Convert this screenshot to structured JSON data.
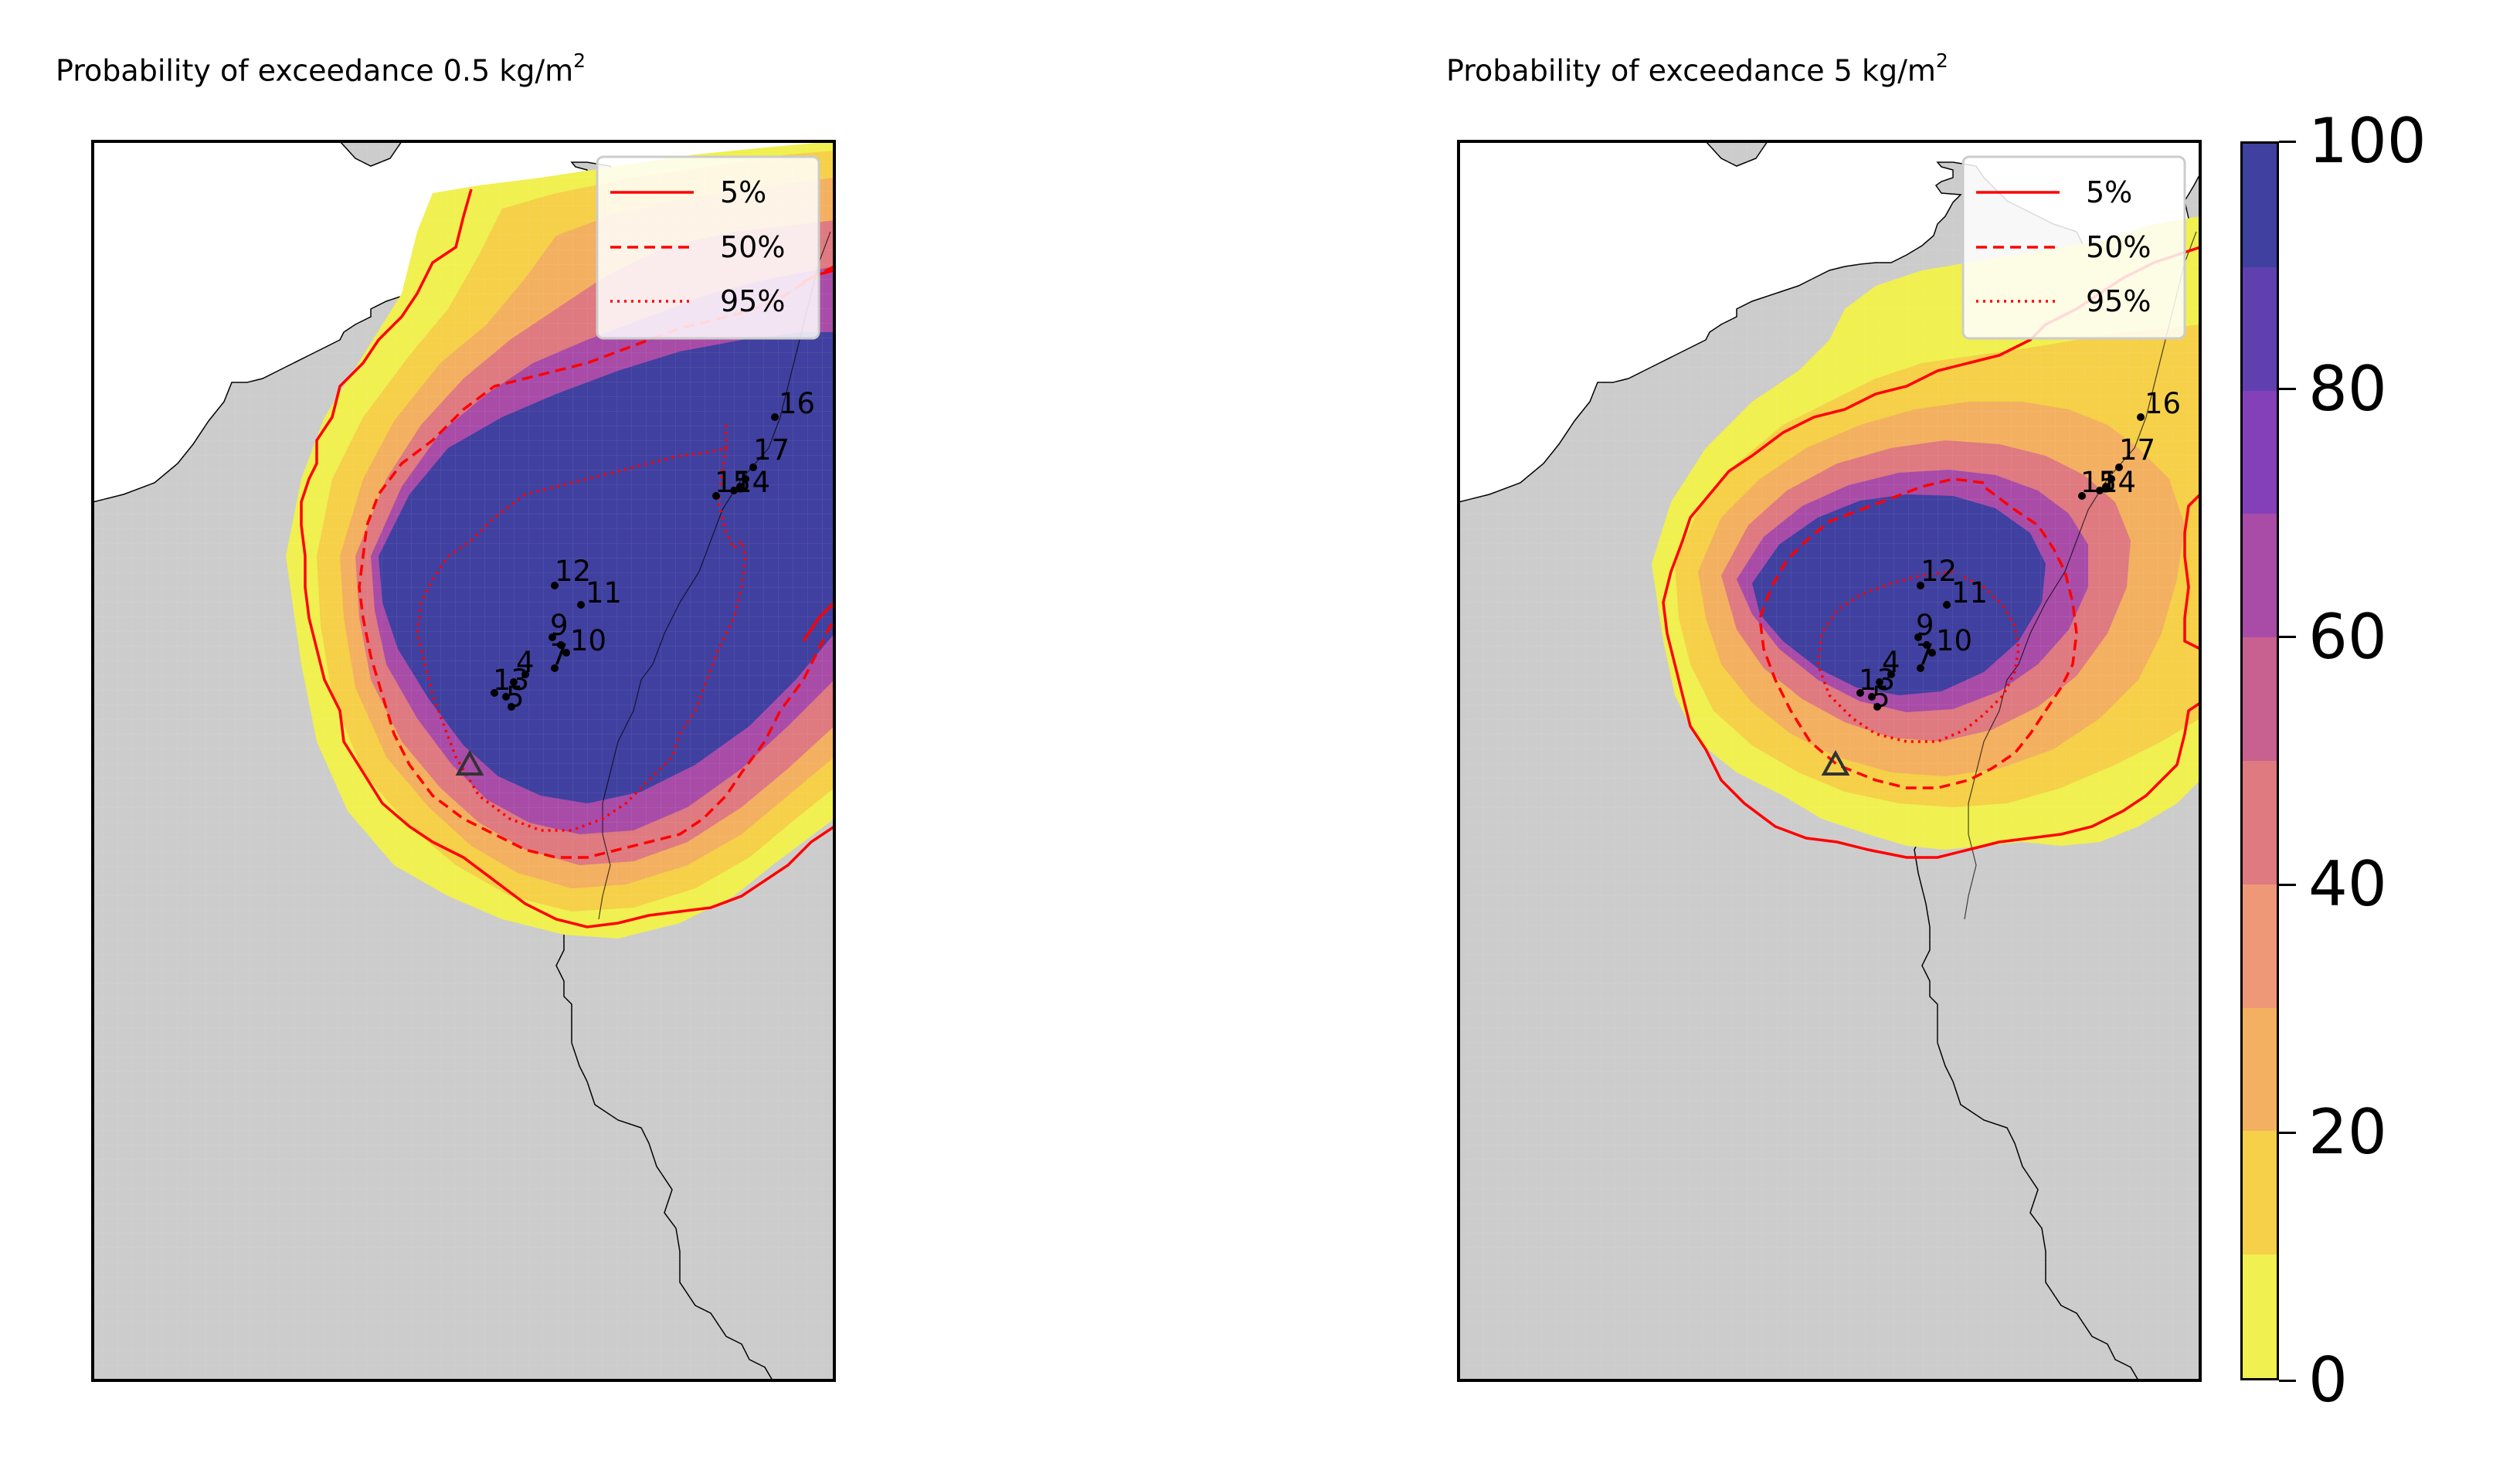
{
  "panels": [
    {
      "id": "left",
      "title_prefix": "Probability of exceedance 0.5 kg/m",
      "title_sup": "2",
      "legend": [
        {
          "label": "5%",
          "style": "solid"
        },
        {
          "label": "50%",
          "style": "dashed"
        },
        {
          "label": "95%",
          "style": "dotted"
        }
      ],
      "station_labels": [
        "16",
        "17",
        "12",
        "11",
        "9",
        "10",
        "7",
        "4",
        "13",
        "5",
        "15",
        "14"
      ]
    },
    {
      "id": "right",
      "title_prefix": "Probability of exceedance 5 kg/m",
      "title_sup": "2",
      "legend": [
        {
          "label": "5%",
          "style": "solid"
        },
        {
          "label": "50%",
          "style": "dashed"
        },
        {
          "label": "95%",
          "style": "dotted"
        }
      ],
      "station_labels": [
        "16",
        "17",
        "12",
        "11",
        "9",
        "10",
        "7",
        "4",
        "13",
        "5",
        "15",
        "14"
      ]
    }
  ],
  "colorbar": {
    "ticks": [
      "0",
      "20",
      "40",
      "60",
      "80",
      "100"
    ],
    "colors": [
      "#f0f050",
      "#f5d048",
      "#f3b060",
      "#ef9878",
      "#de7a80",
      "#c86090",
      "#a84ca8",
      "#8440b8",
      "#6040b0",
      "#4040a0"
    ]
  },
  "colors": {
    "land": "#cccccc",
    "contour": "#ff0000",
    "vent": "#333333"
  }
}
